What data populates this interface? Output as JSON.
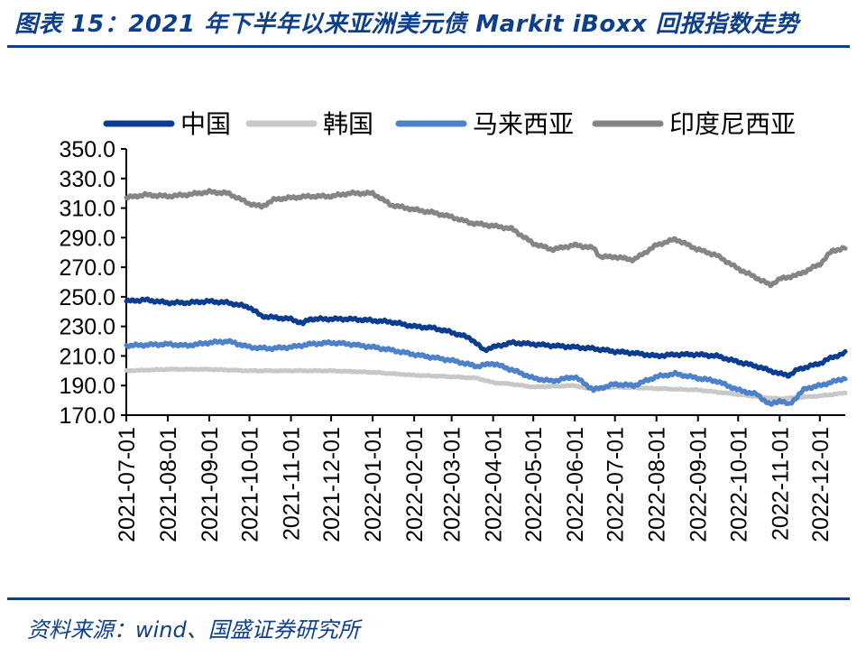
{
  "figure": {
    "title": "图表 15：2021 年下半年以来亚洲美元债 Markit iBoxx 回报指数走势",
    "source": "资料来源：wind、国盛证券研究所"
  },
  "colors": {
    "brand": "#0e3f8c",
    "china": "#0a3d91",
    "korea": "#c8c8c8",
    "malaysia": "#4d81c9",
    "indonesia": "#858585"
  },
  "chart_data": {
    "type": "line",
    "title": "",
    "xlabel": "",
    "ylabel": "",
    "ylim": [
      170,
      350
    ],
    "yticks": [
      "350.0",
      "330.0",
      "310.0",
      "290.0",
      "270.0",
      "250.0",
      "230.0",
      "210.0",
      "190.0",
      "170.0"
    ],
    "ytick_values": [
      350,
      330,
      310,
      290,
      270,
      250,
      230,
      210,
      190,
      170
    ],
    "x": [
      "2021-07-01",
      "2021-08-01",
      "2021-09-01",
      "2021-10-01",
      "2021-11-01",
      "2021-12-01",
      "2022-01-01",
      "2022-02-01",
      "2022-03-01",
      "2022-04-01",
      "2022-05-01",
      "2022-06-01",
      "2022-07-01",
      "2022-08-01",
      "2022-09-01",
      "2022-10-01",
      "2022-11-01",
      "2022-12-01"
    ],
    "x_end": "2022-12-20",
    "legend_position": "top",
    "series": [
      {
        "name": "中国",
        "color": "#0a3d91",
        "points": [
          [
            "2021-07-01",
            247
          ],
          [
            "2021-07-15",
            248
          ],
          [
            "2021-08-01",
            246
          ],
          [
            "2021-08-15",
            246
          ],
          [
            "2021-09-01",
            247
          ],
          [
            "2021-09-15",
            246
          ],
          [
            "2021-10-01",
            243
          ],
          [
            "2021-10-10",
            237
          ],
          [
            "2021-10-20",
            236
          ],
          [
            "2021-11-01",
            235
          ],
          [
            "2021-11-10",
            232
          ],
          [
            "2021-11-15",
            235
          ],
          [
            "2021-12-01",
            235
          ],
          [
            "2021-12-15",
            235
          ],
          [
            "2022-01-01",
            234
          ],
          [
            "2022-01-15",
            233
          ],
          [
            "2022-02-01",
            230
          ],
          [
            "2022-02-15",
            229
          ],
          [
            "2022-03-01",
            226
          ],
          [
            "2022-03-15",
            222
          ],
          [
            "2022-03-25",
            214
          ],
          [
            "2022-04-01",
            216
          ],
          [
            "2022-04-15",
            219
          ],
          [
            "2022-05-01",
            218
          ],
          [
            "2022-05-15",
            217
          ],
          [
            "2022-06-01",
            216
          ],
          [
            "2022-06-15",
            215
          ],
          [
            "2022-07-01",
            213
          ],
          [
            "2022-07-15",
            212
          ],
          [
            "2022-08-01",
            210
          ],
          [
            "2022-08-15",
            211
          ],
          [
            "2022-09-01",
            211
          ],
          [
            "2022-09-15",
            210
          ],
          [
            "2022-10-01",
            206
          ],
          [
            "2022-10-15",
            203
          ],
          [
            "2022-11-01",
            198
          ],
          [
            "2022-11-08",
            197
          ],
          [
            "2022-11-15",
            201
          ],
          [
            "2022-12-01",
            205
          ],
          [
            "2022-12-10",
            209
          ],
          [
            "2022-12-20",
            212
          ]
        ]
      },
      {
        "name": "韩国",
        "color": "#c8c8c8",
        "points": [
          [
            "2021-07-01",
            200
          ],
          [
            "2021-08-01",
            201
          ],
          [
            "2021-09-01",
            201
          ],
          [
            "2021-10-01",
            200
          ],
          [
            "2021-11-01",
            200
          ],
          [
            "2021-12-01",
            200
          ],
          [
            "2022-01-01",
            199
          ],
          [
            "2022-02-01",
            197
          ],
          [
            "2022-03-01",
            196
          ],
          [
            "2022-03-20",
            195
          ],
          [
            "2022-04-01",
            192
          ],
          [
            "2022-04-15",
            191
          ],
          [
            "2022-05-01",
            189
          ],
          [
            "2022-06-01",
            190
          ],
          [
            "2022-06-10",
            188
          ],
          [
            "2022-07-01",
            189
          ],
          [
            "2022-08-01",
            188
          ],
          [
            "2022-09-01",
            187
          ],
          [
            "2022-10-01",
            184
          ],
          [
            "2022-10-20",
            182
          ],
          [
            "2022-11-01",
            181
          ],
          [
            "2022-11-15",
            182
          ],
          [
            "2022-12-01",
            183
          ],
          [
            "2022-12-20",
            185
          ]
        ]
      },
      {
        "name": "马来西亚",
        "color": "#4d81c9",
        "points": [
          [
            "2021-07-01",
            217
          ],
          [
            "2021-08-01",
            218
          ],
          [
            "2021-08-15",
            217
          ],
          [
            "2021-09-01",
            219
          ],
          [
            "2021-09-15",
            220
          ],
          [
            "2021-10-01",
            216
          ],
          [
            "2021-10-15",
            215
          ],
          [
            "2021-11-01",
            216
          ],
          [
            "2021-11-15",
            218
          ],
          [
            "2021-12-01",
            219
          ],
          [
            "2021-12-15",
            218
          ],
          [
            "2022-01-01",
            216
          ],
          [
            "2022-01-15",
            214
          ],
          [
            "2022-02-01",
            211
          ],
          [
            "2022-03-01",
            207
          ],
          [
            "2022-03-20",
            203
          ],
          [
            "2022-04-01",
            205
          ],
          [
            "2022-04-20",
            199
          ],
          [
            "2022-05-01",
            195
          ],
          [
            "2022-05-15",
            193
          ],
          [
            "2022-06-01",
            196
          ],
          [
            "2022-06-15",
            187
          ],
          [
            "2022-07-01",
            191
          ],
          [
            "2022-07-15",
            190
          ],
          [
            "2022-08-01",
            196
          ],
          [
            "2022-08-15",
            198
          ],
          [
            "2022-09-01",
            195
          ],
          [
            "2022-09-15",
            193
          ],
          [
            "2022-10-01",
            187
          ],
          [
            "2022-10-15",
            184
          ],
          [
            "2022-10-25",
            177
          ],
          [
            "2022-11-01",
            180
          ],
          [
            "2022-11-08",
            177
          ],
          [
            "2022-11-20",
            188
          ],
          [
            "2022-12-01",
            190
          ],
          [
            "2022-12-20",
            195
          ]
        ]
      },
      {
        "name": "印度尼西亚",
        "color": "#858585",
        "points": [
          [
            "2021-07-01",
            317
          ],
          [
            "2021-07-15",
            319
          ],
          [
            "2021-08-01",
            318
          ],
          [
            "2021-08-15",
            319
          ],
          [
            "2021-09-01",
            321
          ],
          [
            "2021-09-15",
            320
          ],
          [
            "2021-10-01",
            313
          ],
          [
            "2021-10-10",
            311
          ],
          [
            "2021-10-20",
            316
          ],
          [
            "2021-11-01",
            317
          ],
          [
            "2021-11-15",
            318
          ],
          [
            "2021-12-01",
            318
          ],
          [
            "2021-12-15",
            320
          ],
          [
            "2022-01-01",
            320
          ],
          [
            "2022-01-15",
            312
          ],
          [
            "2022-02-01",
            309
          ],
          [
            "2022-02-15",
            307
          ],
          [
            "2022-03-01",
            304
          ],
          [
            "2022-03-15",
            300
          ],
          [
            "2022-04-01",
            298
          ],
          [
            "2022-04-15",
            296
          ],
          [
            "2022-05-01",
            286
          ],
          [
            "2022-05-15",
            282
          ],
          [
            "2022-06-01",
            285
          ],
          [
            "2022-06-15",
            283
          ],
          [
            "2022-06-20",
            277
          ],
          [
            "2022-07-01",
            277
          ],
          [
            "2022-07-15",
            275
          ],
          [
            "2022-08-01",
            285
          ],
          [
            "2022-08-15",
            289
          ],
          [
            "2022-09-01",
            282
          ],
          [
            "2022-09-15",
            278
          ],
          [
            "2022-10-01",
            269
          ],
          [
            "2022-10-10",
            265
          ],
          [
            "2022-10-25",
            258
          ],
          [
            "2022-11-01",
            262
          ],
          [
            "2022-11-15",
            265
          ],
          [
            "2022-12-01",
            272
          ],
          [
            "2022-12-10",
            281
          ],
          [
            "2022-12-20",
            283
          ]
        ]
      }
    ]
  }
}
